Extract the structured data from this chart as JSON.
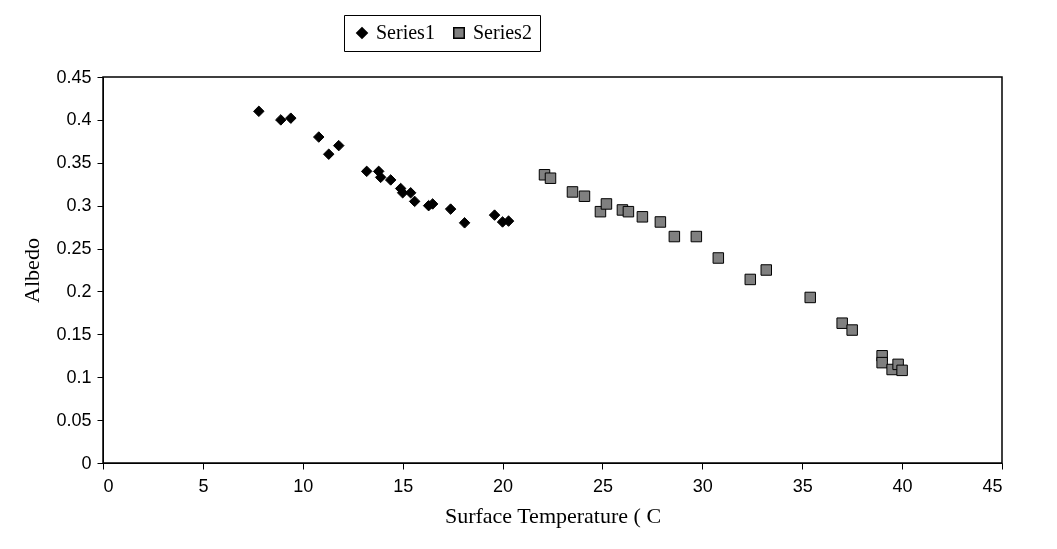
{
  "chart_data": {
    "type": "scatter",
    "xlabel": "Surface Temperature (   C",
    "ylabel": "Albedo",
    "xlim": [
      0,
      45
    ],
    "xticks": [
      0,
      5,
      10,
      15,
      20,
      25,
      30,
      35,
      40,
      45
    ],
    "ylim": [
      0,
      0.45
    ],
    "yticks": [
      0,
      0.05,
      0.1,
      0.15,
      0.2,
      0.25,
      0.3,
      0.35,
      0.4,
      0.45
    ],
    "grid": false,
    "legend": "top",
    "series": [
      {
        "name": "Series1",
        "color": "#000000",
        "marker": "diamond",
        "x": [
          7.8,
          8.9,
          9.4,
          10.8,
          11.3,
          11.8,
          13.2,
          13.8,
          13.9,
          14.4,
          14.9,
          15.0,
          15.4,
          15.6,
          16.3,
          16.5,
          17.4,
          18.1,
          19.6,
          20.0,
          20.3
        ],
        "values": [
          0.41,
          0.4,
          0.402,
          0.38,
          0.36,
          0.37,
          0.34,
          0.34,
          0.333,
          0.33,
          0.32,
          0.315,
          0.315,
          0.305,
          0.3,
          0.302,
          0.296,
          0.28,
          0.289,
          0.281,
          0.282
        ]
      },
      {
        "name": "Series2",
        "color": "#808080",
        "marker": "square",
        "x": [
          22.1,
          22.4,
          23.5,
          24.1,
          24.9,
          25.2,
          26.0,
          26.3,
          27.0,
          27.9,
          28.6,
          29.7,
          30.8,
          32.4,
          33.2,
          35.4,
          37.0,
          37.5,
          39.0,
          39.0,
          39.5,
          39.8,
          40.0
        ],
        "values": [
          0.336,
          0.332,
          0.316,
          0.311,
          0.293,
          0.302,
          0.295,
          0.293,
          0.287,
          0.281,
          0.264,
          0.264,
          0.239,
          0.214,
          0.225,
          0.193,
          0.163,
          0.155,
          0.125,
          0.117,
          0.109,
          0.115,
          0.108
        ]
      }
    ]
  }
}
